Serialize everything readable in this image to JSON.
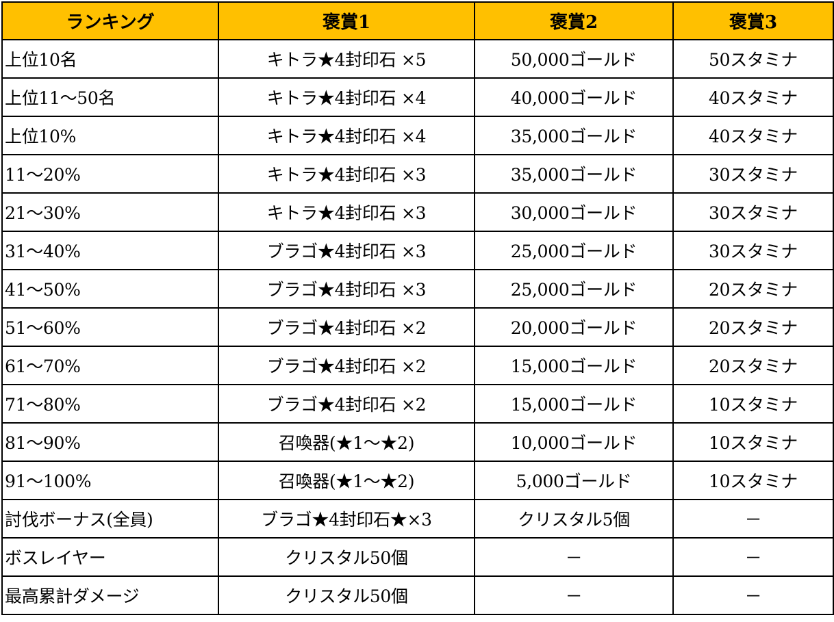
{
  "colors": {
    "header_background": "#FFC000",
    "border": "#000000",
    "text": "#000000"
  },
  "table": {
    "headers": [
      "ランキング",
      "褒賞1",
      "褒賞2",
      "褒賞3"
    ],
    "rows": [
      [
        "上位10名",
        "キトラ★4封印石 ×5",
        "50,000ゴールド",
        "50スタミナ"
      ],
      [
        "上位11～50名",
        "キトラ★4封印石 ×4",
        "40,000ゴールド",
        "40スタミナ"
      ],
      [
        "上位10%",
        "キトラ★4封印石 ×4",
        "35,000ゴールド",
        "40スタミナ"
      ],
      [
        "11～20%",
        "キトラ★4封印石 ×3",
        "35,000ゴールド",
        "30スタミナ"
      ],
      [
        "21～30%",
        "キトラ★4封印石 ×3",
        "30,000ゴールド",
        "30スタミナ"
      ],
      [
        "31～40%",
        "ブラゴ★4封印石 ×3",
        "25,000ゴールド",
        "30スタミナ"
      ],
      [
        "41～50%",
        "ブラゴ★4封印石 ×3",
        "25,000ゴールド",
        "20スタミナ"
      ],
      [
        "51～60%",
        "ブラゴ★4封印石 ×2",
        "20,000ゴールド",
        "20スタミナ"
      ],
      [
        "61～70%",
        "ブラゴ★4封印石 ×2",
        "15,000ゴールド",
        "20スタミナ"
      ],
      [
        "71～80%",
        "ブラゴ★4封印石 ×2",
        "15,000ゴールド",
        "10スタミナ"
      ],
      [
        "81～90%",
        "召喚器(★1～★2)",
        "10,000ゴールド",
        "10スタミナ"
      ],
      [
        "91～100%",
        "召喚器(★1～★2)",
        "5,000ゴールド",
        "10スタミナ"
      ],
      [
        "討伐ボーナス(全員)",
        "ブラゴ★4封印石★×3",
        "クリスタル5個",
        "－"
      ],
      [
        "ボスレイヤー",
        "クリスタル50個",
        "－",
        "－"
      ],
      [
        "最高累計ダメージ",
        "クリスタル50個",
        "－",
        "－"
      ]
    ]
  }
}
